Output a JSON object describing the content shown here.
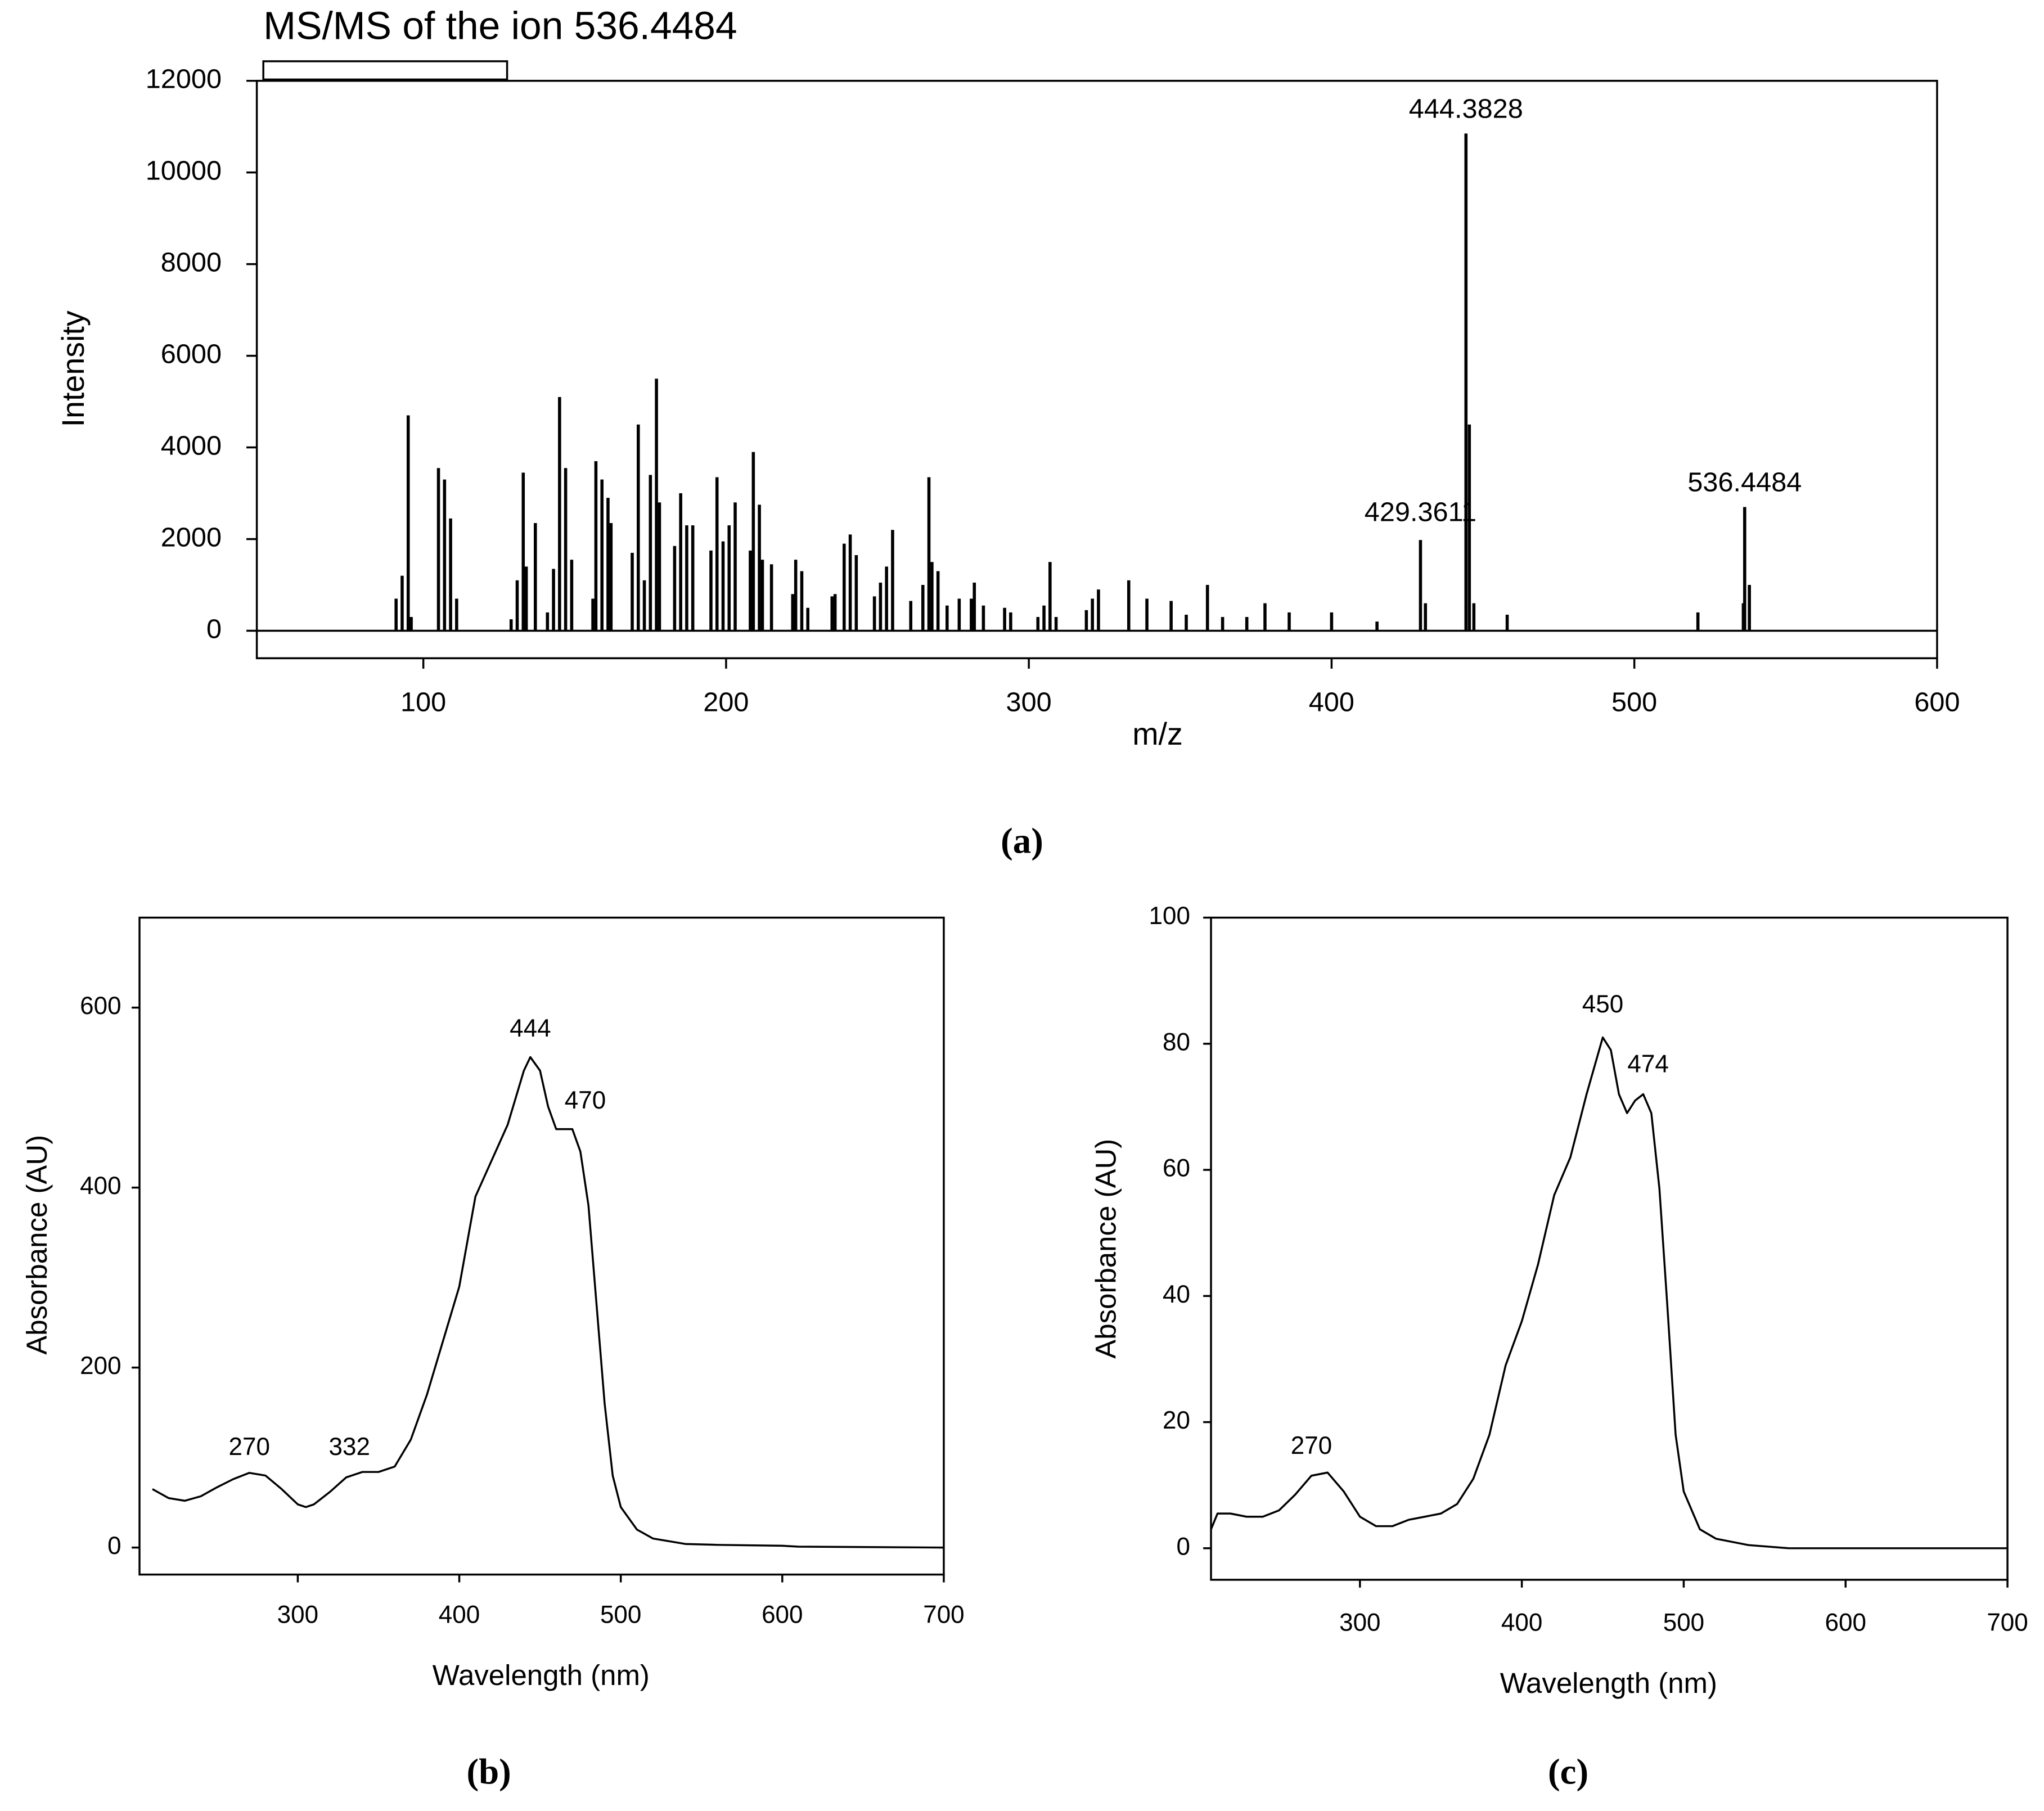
{
  "chart_data": [
    {
      "type": "bar",
      "title": "MS/MS of the ion 536.4484",
      "xlabel": "m/z",
      "ylabel": "Intensity",
      "label": "(a)",
      "color": "#000000",
      "xlim": [
        45,
        600
      ],
      "ylim": [
        -600,
        12000
      ],
      "xticks": [
        100,
        200,
        300,
        400,
        500,
        600
      ],
      "yticks": [
        0,
        2000,
        4000,
        6000,
        8000,
        10000,
        12000
      ],
      "x": [
        91,
        93,
        95,
        96,
        105,
        107,
        109,
        111,
        129,
        131,
        133,
        134,
        137,
        141,
        143,
        145,
        147,
        149,
        156,
        157,
        159,
        161,
        162,
        169,
        171,
        173,
        175,
        177,
        178,
        183,
        185,
        187,
        189,
        195,
        197,
        199,
        201,
        203,
        208,
        209,
        211,
        212,
        215,
        222,
        223,
        225,
        227,
        235,
        236,
        239,
        241,
        243,
        249,
        251,
        253,
        255,
        261,
        265,
        267,
        268,
        270,
        273,
        277,
        281,
        282,
        285,
        292,
        294,
        303,
        305,
        307,
        309,
        319,
        321,
        323,
        333,
        339,
        347,
        352,
        359,
        364,
        372,
        378,
        386,
        400,
        415,
        429.3611,
        431,
        444.3828,
        445.5,
        447,
        458,
        521,
        536,
        536.4484,
        538
      ],
      "values": [
        700,
        1200,
        4700,
        300,
        3550,
        3300,
        2450,
        700,
        250,
        1100,
        3450,
        1400,
        2350,
        400,
        1350,
        5100,
        3550,
        1550,
        700,
        3700,
        3300,
        2900,
        2350,
        1700,
        4500,
        1100,
        3400,
        5500,
        2800,
        1850,
        3000,
        2300,
        2300,
        1750,
        3350,
        1950,
        2300,
        2800,
        1750,
        3900,
        2750,
        1550,
        1450,
        800,
        1550,
        1300,
        500,
        750,
        800,
        1900,
        2100,
        1650,
        750,
        1050,
        1400,
        2200,
        650,
        1000,
        3350,
        1500,
        1300,
        550,
        700,
        700,
        1050,
        550,
        500,
        400,
        300,
        550,
        1500,
        300,
        450,
        700,
        900,
        1100,
        700,
        650,
        350,
        1000,
        300,
        300,
        600,
        400,
        400,
        200,
        1980,
        600,
        10850,
        4500,
        600,
        350,
        400,
        600,
        2700,
        1000
      ],
      "annotations": [
        {
          "text": "444.3828",
          "x": 444.3828,
          "y": 11350
        },
        {
          "text": "429.3611",
          "x": 429.3611,
          "y": 2550
        },
        {
          "text": "536.4484",
          "x": 536.4484,
          "y": 3200
        }
      ]
    },
    {
      "type": "line",
      "xlabel": "Wavelength (nm)",
      "ylabel": "Absorbance (AU)",
      "label": "(b)",
      "color": "#000000",
      "xlim": [
        202,
        700
      ],
      "ylim": [
        -30,
        700
      ],
      "xticks": [
        300,
        400,
        500,
        600,
        700
      ],
      "yticks": [
        0,
        200,
        400,
        600
      ],
      "x": [
        210,
        220,
        230,
        240,
        250,
        260,
        270,
        280,
        290,
        300,
        305,
        310,
        320,
        330,
        340,
        350,
        360,
        370,
        380,
        390,
        400,
        410,
        420,
        430,
        440,
        444,
        450,
        455,
        460,
        470,
        475,
        480,
        485,
        490,
        495,
        500,
        510,
        520,
        540,
        560,
        600,
        610,
        700
      ],
      "values": [
        65,
        55,
        52,
        57,
        67,
        76,
        83,
        80,
        65,
        48,
        45,
        48,
        62,
        78,
        84,
        84,
        90,
        120,
        170,
        230,
        290,
        390,
        430,
        470,
        530,
        545,
        530,
        490,
        465,
        465,
        440,
        380,
        270,
        160,
        80,
        45,
        20,
        10,
        4,
        3,
        2,
        1,
        0
      ],
      "annotations": [
        {
          "text": "270",
          "x": 270,
          "y": 110
        },
        {
          "text": "332",
          "x": 332,
          "y": 110
        },
        {
          "text": "444",
          "x": 444,
          "y": 575
        },
        {
          "text": "470",
          "x": 478,
          "y": 495
        }
      ]
    },
    {
      "type": "line",
      "xlabel": "Wavelength (nm)",
      "ylabel": "Absorbance (AU)",
      "label": "(c)",
      "color": "#000000",
      "xlim": [
        208,
        700
      ],
      "ylim": [
        -5,
        100
      ],
      "xticks": [
        300,
        400,
        500,
        600,
        700
      ],
      "yticks": [
        0,
        20,
        40,
        60,
        80,
        100
      ],
      "x": [
        208,
        212,
        220,
        230,
        240,
        250,
        260,
        270,
        280,
        290,
        300,
        310,
        320,
        330,
        340,
        350,
        360,
        370,
        380,
        390,
        400,
        410,
        420,
        430,
        440,
        450,
        455,
        460,
        465,
        470,
        475,
        480,
        485,
        490,
        495,
        500,
        510,
        520,
        540,
        565,
        700
      ],
      "values": [
        3,
        5.5,
        5.5,
        5,
        5,
        6,
        8.5,
        11.5,
        12,
        9,
        5,
        3.5,
        3.5,
        4.5,
        5,
        5.5,
        7,
        11,
        18,
        29,
        36,
        45,
        56,
        62,
        72,
        81,
        79,
        72,
        69,
        71,
        72,
        69,
        57,
        38,
        18,
        9,
        3,
        1.5,
        0.5,
        0,
        0
      ],
      "annotations": [
        {
          "text": "270",
          "x": 270,
          "y": 16
        },
        {
          "text": "450",
          "x": 450,
          "y": 86
        },
        {
          "text": "474",
          "x": 478,
          "y": 76.5
        }
      ]
    }
  ]
}
